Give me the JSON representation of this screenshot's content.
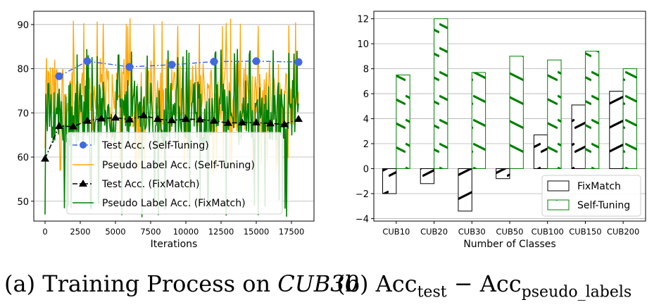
{
  "chart_data": [
    {
      "type": "line",
      "xlabel": "Iterations",
      "ylabel": "",
      "xlim": [
        -800,
        19100
      ],
      "ylim": [
        45.5,
        93
      ],
      "xticks": [
        "0",
        "2500",
        "5000",
        "7500",
        "10000",
        "12500",
        "15000",
        "17500"
      ],
      "yticks": [
        "50",
        "60",
        "70",
        "80",
        "90"
      ],
      "grid": "horizontal",
      "legend": "lower-center",
      "series": [
        {
          "name": "Test Acc. (Self-Tuning)",
          "color": "#4169e1",
          "style": "dash-dot, circle markers",
          "x": [
            1000,
            3000,
            6000,
            9000,
            12000,
            15000,
            18000
          ],
          "y": [
            78.3,
            81.7,
            80.4,
            80.9,
            81.6,
            81.7,
            81.5
          ]
        },
        {
          "name": "Pseudo Label Acc. (Self-Tuning)",
          "color": "#ffa500",
          "style": "solid, noisy",
          "x_range": [
            0,
            18000
          ],
          "y_range": [
            56,
            91.5
          ]
        },
        {
          "name": "Test Acc. (FixMatch)",
          "color": "#000000",
          "style": "dash-dot, triangle markers",
          "x": [
            0,
            1000,
            2000,
            3000,
            4000,
            5000,
            6000,
            7000,
            8000,
            9000,
            10000,
            11000,
            12000,
            13000,
            14000,
            15000,
            16000,
            17000,
            18000
          ],
          "y": [
            59.6,
            67.0,
            66.9,
            68.2,
            68.7,
            68.9,
            68.5,
            69.4,
            68.6,
            68.3,
            68.6,
            68.5,
            68.2,
            67.7,
            67.8,
            67.8,
            67.6,
            67.4,
            68.6
          ]
        },
        {
          "name": "Pseudo Label Acc. (FixMatch)",
          "color": "#008000",
          "style": "solid, noisy",
          "x_range": [
            0,
            18000
          ],
          "y_range": [
            46.3,
            84.5
          ]
        }
      ]
    },
    {
      "type": "bar",
      "xlabel": "Number of Classes",
      "ylabel": "",
      "categories": [
        "CUB10",
        "CUB20",
        "CUB30",
        "CUB50",
        "CUB100",
        "CUB150",
        "CUB200"
      ],
      "ylim": [
        -4.2,
        12.6
      ],
      "yticks": [
        "−4",
        "−2",
        "0",
        "2",
        "4",
        "6",
        "8",
        "10",
        "12"
      ],
      "grid": "horizontal",
      "legend": "lower-right",
      "series": [
        {
          "name": "FixMatch",
          "color": "#000000",
          "hatch": "diagonal",
          "values": [
            -2.0,
            -1.2,
            -3.4,
            -0.8,
            2.7,
            5.1,
            6.2
          ]
        },
        {
          "name": "Self-Tuning",
          "color": "#008000",
          "hatch": "diagonal",
          "values": [
            7.5,
            12.0,
            7.7,
            9.0,
            8.7,
            9.4,
            8.0
          ]
        }
      ]
    }
  ],
  "captions": {
    "a_prefix": "(a) Training Process on ",
    "a_italic": "CUB30",
    "b_prefix": "(b) Acc",
    "b_sub1": "test",
    "b_mid": " − Acc",
    "b_sub2": "pseudo_labels"
  }
}
